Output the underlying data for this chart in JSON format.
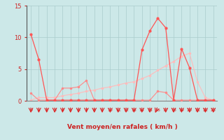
{
  "x": [
    0,
    1,
    2,
    3,
    4,
    5,
    6,
    7,
    8,
    9,
    10,
    11,
    12,
    13,
    14,
    15,
    16,
    17,
    18,
    19,
    20,
    21,
    22,
    23
  ],
  "line_dark": [
    10.5,
    6.5,
    0.1,
    0.1,
    0.1,
    0.1,
    0.1,
    0.1,
    0.1,
    0.1,
    0.1,
    0.1,
    0.1,
    0.1,
    8.0,
    11.0,
    13.0,
    11.5,
    0.1,
    8.2,
    5.2,
    0.1,
    0.1,
    0.1
  ],
  "line_med": [
    1.2,
    0.1,
    0.1,
    0.1,
    2.0,
    2.0,
    2.2,
    3.2,
    0.1,
    0.1,
    0.1,
    0.1,
    0.1,
    0.1,
    0.1,
    0.1,
    1.5,
    1.3,
    0.1,
    0.1,
    0.1,
    0.1,
    0.1,
    0.1
  ],
  "line_light1": [
    0.1,
    0.1,
    0.1,
    0.1,
    0.1,
    0.1,
    0.1,
    0.1,
    0.1,
    0.1,
    0.1,
    0.1,
    0.1,
    0.1,
    0.1,
    0.1,
    0.1,
    0.1,
    0.1,
    0.1,
    0.1,
    0.1,
    0.1,
    0.1
  ],
  "line_light2": [
    0.1,
    0.5,
    0.5,
    0.5,
    0.8,
    1.0,
    1.2,
    1.5,
    1.7,
    2.0,
    2.2,
    2.5,
    2.8,
    3.0,
    3.5,
    4.0,
    4.8,
    5.5,
    6.2,
    7.0,
    7.5,
    3.0,
    0.5,
    0.1
  ],
  "bg_color": "#cce8e8",
  "line_dark_color": "#ff5555",
  "line_med_color": "#ff8888",
  "line_light1_color": "#ffaaaa",
  "line_light2_color": "#ffbbbb",
  "arrow_color": "#dd2222",
  "xlabel": "Vent moyen/en rafales ( km/h )",
  "ylim": [
    0,
    15
  ],
  "xlim": [
    -0.5,
    23.5
  ],
  "yticks": [
    0,
    5,
    10,
    15
  ],
  "grid_color": "#aacccc"
}
